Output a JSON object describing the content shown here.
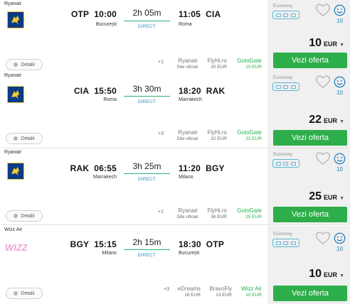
{
  "flights": [
    {
      "airline": "Ryanair",
      "logo": "ryanair-logo",
      "dep_code": "OTP",
      "dep_time": "10:00",
      "dep_city": "București",
      "duration": "2h 05m",
      "stops": "DIRECT",
      "arr_time": "11:05",
      "arr_code": "CIA",
      "arr_city": "Roma",
      "details": "Detalii",
      "more": "+1",
      "providers": [
        {
          "name": "Ryanair",
          "price": "Site oficial"
        },
        {
          "name": "FlyHi.ro",
          "price": "20 EUR"
        },
        {
          "name": "GotoGate",
          "price": "10 EUR"
        }
      ],
      "cabin": "Economy",
      "rating": "10",
      "price": "10",
      "currency": "EUR",
      "cta": "Vezi oferta"
    },
    {
      "airline": "Ryanair",
      "logo": "ryanair-logo",
      "dep_code": "CIA",
      "dep_time": "15:50",
      "dep_city": "Roma",
      "duration": "3h 30m",
      "stops": "DIRECT",
      "arr_time": "18:20",
      "arr_code": "RAK",
      "arr_city": "Marrakech",
      "details": "Detalii",
      "more": "+3",
      "providers": [
        {
          "name": "Ryanair",
          "price": "Site oficial"
        },
        {
          "name": "FlyHi.ro",
          "price": "32 EUR"
        },
        {
          "name": "GotoGate",
          "price": "22 EUR"
        }
      ],
      "cabin": "Economy",
      "rating": "10",
      "price": "22",
      "currency": "EUR",
      "cta": "Vezi oferta"
    },
    {
      "airline": "Ryanair",
      "logo": "ryanair-logo",
      "dep_code": "RAK",
      "dep_time": "06:55",
      "dep_city": "Marrakech",
      "duration": "3h 25m",
      "stops": "DIRECT",
      "arr_time": "11:20",
      "arr_code": "BGY",
      "arr_city": "Milano",
      "details": "Detalii",
      "more": "+1",
      "providers": [
        {
          "name": "Ryanair",
          "price": "Site oficial"
        },
        {
          "name": "FlyHi.ro",
          "price": "36 EUR"
        },
        {
          "name": "GotoGate",
          "price": "25 EUR"
        }
      ],
      "cabin": "Economy",
      "rating": "10",
      "price": "25",
      "currency": "EUR",
      "cta": "Vezi oferta"
    },
    {
      "airline": "Wizz Air",
      "logo": "wizz-logo",
      "dep_code": "BGY",
      "dep_time": "15:15",
      "dep_city": "Milano",
      "duration": "2h 15m",
      "stops": "DIRECT",
      "arr_time": "18:30",
      "arr_code": "OTP",
      "arr_city": "București",
      "details": "Detalii",
      "more": "+3",
      "providers": [
        {
          "name": "eDreams",
          "price": "16 EUR"
        },
        {
          "name": "BravoFly",
          "price": "13 EUR"
        },
        {
          "name": "Wizz Air",
          "price": "10 EUR"
        }
      ],
      "cabin": "Economy",
      "rating": "10",
      "price": "10",
      "currency": "EUR",
      "cta": "Vezi oferta"
    }
  ],
  "colors": {
    "accent_green": "#2eae4a",
    "line_green": "#2eb07c",
    "direct_blue": "#2a8fbd",
    "rating_blue": "#1a7fc0",
    "ryanair_navy": "#0c3a84",
    "ryanair_gold": "#f1c933",
    "wizz_magenta": "#c6197e"
  },
  "icons": {
    "details": "info-dot-icon",
    "favorite": "heart-outline-icon",
    "rating": "smiley-icon",
    "baggage": "baggage-icon",
    "price_more": "chevron-down-icon"
  }
}
